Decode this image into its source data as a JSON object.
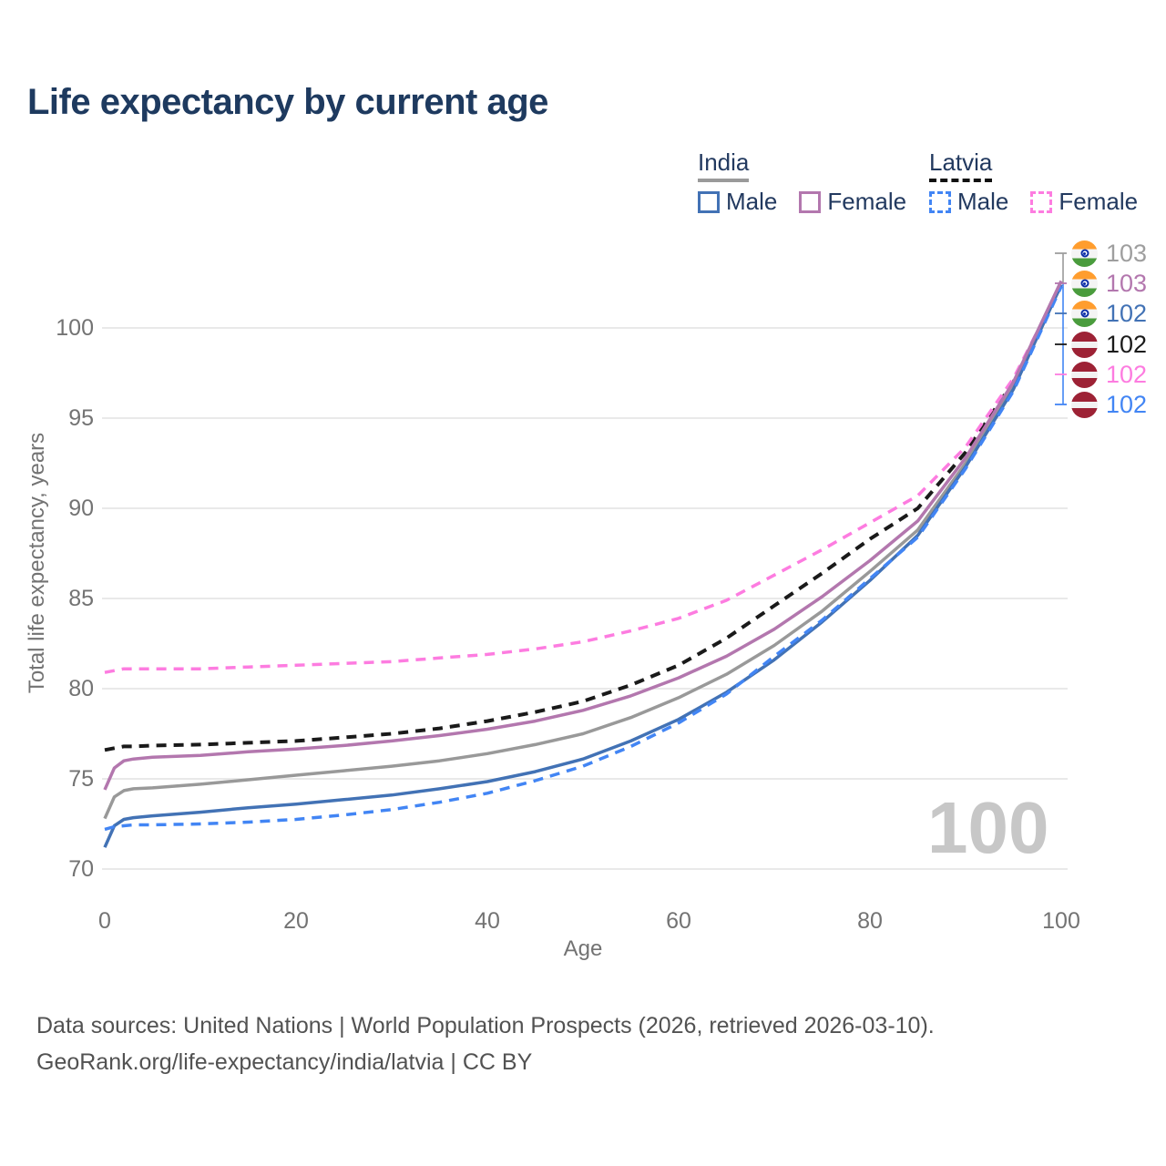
{
  "title": "Life expectancy by current age",
  "watermark_age": "100",
  "legend": {
    "groups": [
      {
        "id": "india",
        "country": "India",
        "items": [
          {
            "label": "Male",
            "color": "#4272b5",
            "dashed": false
          },
          {
            "label": "Female",
            "color": "#b377ae",
            "dashed": false
          }
        ]
      },
      {
        "id": "latvia",
        "country": "Latvia",
        "items": [
          {
            "label": "Male",
            "color": "#4285f4",
            "dashed": true
          },
          {
            "label": "Female",
            "color": "#fd7ce0",
            "dashed": true
          }
        ]
      }
    ]
  },
  "chart_data": {
    "type": "line",
    "title": "Life expectancy by current age",
    "xlabel": "Age",
    "ylabel": "Total life expectancy, years",
    "xlim": [
      0,
      100
    ],
    "ylim": [
      70,
      103
    ],
    "xticks": [
      0,
      20,
      40,
      60,
      80,
      100
    ],
    "yticks": [
      70,
      75,
      80,
      85,
      90,
      95,
      100
    ],
    "grid": "horizontal-only",
    "legend_position": "top-right",
    "x": [
      0,
      1,
      2,
      3,
      5,
      10,
      15,
      20,
      25,
      30,
      35,
      40,
      45,
      50,
      55,
      60,
      65,
      70,
      75,
      80,
      85,
      90,
      95,
      100
    ],
    "series": [
      {
        "name": "Latvia Total",
        "country": "latvia",
        "color": "#1a1a1a",
        "dashed": true,
        "width": 4,
        "values": [
          76.6,
          76.7,
          76.8,
          76.8,
          76.85,
          76.9,
          77.0,
          77.1,
          77.3,
          77.5,
          77.8,
          78.2,
          78.7,
          79.3,
          80.2,
          81.3,
          82.8,
          84.6,
          86.4,
          88.3,
          90.0,
          93.1,
          97.0,
          102.4
        ]
      },
      {
        "name": "Latvia Female",
        "country": "latvia",
        "color": "#fd7ce0",
        "dashed": true,
        "width": 3.5,
        "values": [
          80.9,
          81.0,
          81.1,
          81.1,
          81.1,
          81.1,
          81.2,
          81.3,
          81.4,
          81.5,
          81.7,
          81.9,
          82.2,
          82.6,
          83.2,
          83.9,
          84.9,
          86.3,
          87.7,
          89.2,
          90.7,
          93.4,
          97.2,
          102.4
        ]
      },
      {
        "name": "India Total",
        "country": "india",
        "color": "#999999",
        "dashed": false,
        "width": 3.5,
        "values": [
          72.8,
          74.0,
          74.35,
          74.45,
          74.5,
          74.7,
          74.95,
          75.2,
          75.45,
          75.7,
          76.0,
          76.4,
          76.9,
          77.5,
          78.4,
          79.5,
          80.8,
          82.4,
          84.3,
          86.5,
          88.8,
          92.5,
          96.8,
          102.6
        ]
      },
      {
        "name": "India Male",
        "country": "india",
        "color": "#4272b5",
        "dashed": false,
        "width": 3.5,
        "values": [
          71.2,
          72.4,
          72.75,
          72.85,
          72.95,
          73.15,
          73.4,
          73.6,
          73.85,
          74.1,
          74.45,
          74.85,
          75.4,
          76.1,
          77.1,
          78.3,
          79.8,
          81.6,
          83.7,
          86.0,
          88.5,
          92.3,
          96.6,
          102.4
        ]
      },
      {
        "name": "Latvia Male",
        "country": "latvia",
        "color": "#4285f4",
        "dashed": true,
        "width": 3.5,
        "values": [
          72.2,
          72.35,
          72.4,
          72.45,
          72.45,
          72.5,
          72.6,
          72.75,
          73.0,
          73.3,
          73.7,
          74.2,
          74.9,
          75.7,
          76.8,
          78.1,
          79.7,
          81.8,
          83.8,
          86.1,
          88.4,
          92.2,
          96.5,
          102.3
        ]
      },
      {
        "name": "India Female",
        "country": "india",
        "color": "#b377ae",
        "dashed": false,
        "width": 3.5,
        "values": [
          74.4,
          75.6,
          76.0,
          76.1,
          76.2,
          76.3,
          76.5,
          76.65,
          76.85,
          77.1,
          77.4,
          77.75,
          78.2,
          78.8,
          79.6,
          80.6,
          81.8,
          83.3,
          85.1,
          87.1,
          89.3,
          92.8,
          97.0,
          102.6
        ]
      }
    ],
    "end_labels": [
      {
        "value": "103",
        "series": "India Total",
        "country": "india",
        "color": "#9e9e9e",
        "y_center": 278
      },
      {
        "value": "103",
        "series": "India Female",
        "country": "india",
        "color": "#b377ae",
        "y_center": 311
      },
      {
        "value": "102",
        "series": "India Male",
        "country": "india",
        "color": "#4272b5",
        "y_center": 344
      },
      {
        "value": "102",
        "series": "Latvia Total",
        "country": "latvia",
        "color": "#1a1a1a",
        "y_center": 378
      },
      {
        "value": "102",
        "series": "Latvia Female",
        "country": "latvia",
        "color": "#fd7ce0",
        "y_center": 411
      },
      {
        "value": "102",
        "series": "Latvia Male",
        "country": "latvia",
        "color": "#4285f4",
        "y_center": 444
      }
    ]
  },
  "source": {
    "line1": "Data sources: United Nations | World Population Prospects (2026, retrieved 2026-03-10).",
    "line2": "GeoRank.org/life-expectancy/india/latvia | CC BY"
  }
}
